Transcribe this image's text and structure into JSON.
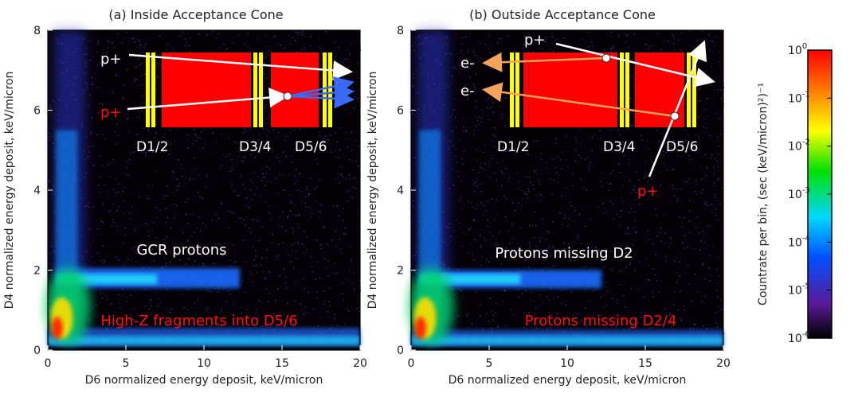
{
  "chart_data": [
    {
      "type": "heatmap",
      "title": "(a) Inside Acceptance Cone",
      "xlabel": "D6 normalized energy deposit, keV/micron",
      "ylabel": "D4 normalized energy deposit, keV/micron",
      "xlim": [
        0,
        20
      ],
      "ylim": [
        0,
        8
      ],
      "xticks": [
        "0",
        "5",
        "10",
        "15",
        "20"
      ],
      "yticks": [
        "0",
        "2",
        "4",
        "6",
        "8"
      ],
      "features": [
        {
          "label": "GCR protons",
          "color": "#ffffff",
          "y_band": [
            1.65,
            1.95
          ],
          "x_extent": [
            0.6,
            12.3
          ]
        },
        {
          "label": "High-Z fragments into D5/6",
          "color": "#ff1010"
        }
      ],
      "bands": [
        {
          "name": "horizontal-band",
          "x": [
            0.6,
            12.3
          ],
          "y": [
            1.55,
            2.05
          ]
        },
        {
          "name": "vertical-band",
          "x": [
            0.4,
            2.4
          ],
          "y": [
            0.3,
            8.0
          ]
        },
        {
          "name": "floor-band",
          "x": [
            0,
            20
          ],
          "y": [
            0.1,
            0.55
          ]
        }
      ],
      "inset": {
        "labels": [
          "D1/2",
          "D3/4",
          "D5/6"
        ],
        "particles": [
          {
            "label": "p+",
            "color": "#ffffff"
          },
          {
            "label": "p+",
            "color": "#ff1010"
          }
        ]
      }
    },
    {
      "type": "heatmap",
      "title": "(b) Outside Acceptance Cone",
      "xlabel": "D6 normalized energy deposit, keV/micron",
      "ylabel": "D4 normalized energy deposit, keV/micron",
      "xlim": [
        0,
        20
      ],
      "ylim": [
        0,
        8
      ],
      "xticks": [
        "0",
        "5",
        "10",
        "15",
        "20"
      ],
      "yticks": [
        "0",
        "2",
        "4",
        "6",
        "8"
      ],
      "features": [
        {
          "label": "Protons missing D2",
          "color": "#ffffff",
          "y_band": [
            1.6,
            1.95
          ],
          "x_extent": [
            0.6,
            12.2
          ]
        },
        {
          "label": "Protons missing D2/4",
          "color": "#ff1010"
        }
      ],
      "bands": [
        {
          "name": "horizontal-band",
          "x": [
            0.6,
            12.2
          ],
          "y": [
            1.55,
            2.0
          ]
        },
        {
          "name": "vertical-band",
          "x": [
            0.4,
            2.4
          ],
          "y": [
            0.3,
            8.0
          ]
        },
        {
          "name": "floor-band",
          "x": [
            0,
            20
          ],
          "y": [
            0.1,
            0.5
          ]
        }
      ],
      "inset": {
        "labels": [
          "D1/2",
          "D3/4",
          "D5/6"
        ],
        "particles": [
          {
            "label": "p+",
            "color": "#ffffff"
          },
          {
            "label": "p+",
            "color": "#ff1010"
          },
          {
            "label": "e-",
            "color": "#ffffff"
          },
          {
            "label": "e-",
            "color": "#ffffff"
          }
        ]
      }
    }
  ],
  "colorbar": {
    "label": "Countrate per bin, (sec (keV/micron)²)⁻¹",
    "scale": "log",
    "ticks": [
      {
        "base": "10",
        "exp": "0",
        "value": 1
      },
      {
        "base": "10",
        "exp": "-1",
        "value": 0.1
      },
      {
        "base": "10",
        "exp": "-2",
        "value": 0.01
      },
      {
        "base": "10",
        "exp": "-3",
        "value": 0.001
      },
      {
        "base": "10",
        "exp": "-4",
        "value": 0.0001
      },
      {
        "base": "10",
        "exp": "-5",
        "value": 1e-05
      },
      {
        "base": "10",
        "exp": "-6",
        "value": 1e-06
      }
    ],
    "colors": [
      "#ff0000",
      "#ff8c00",
      "#ffff00",
      "#00e000",
      "#00d8ff",
      "#0050ff",
      "#5a1a9a",
      "#000000"
    ]
  }
}
